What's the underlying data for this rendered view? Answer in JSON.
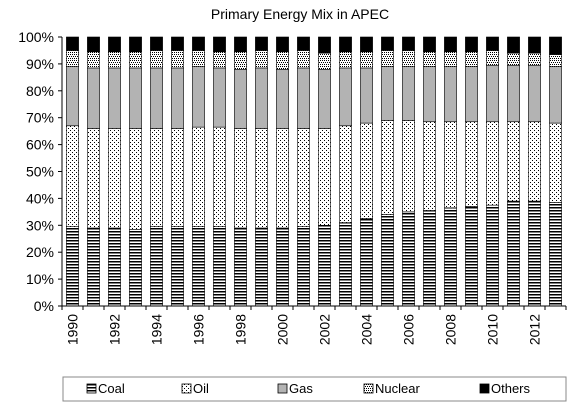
{
  "chart_data": {
    "type": "bar",
    "stacked": true,
    "percent": true,
    "title": "Primary Energy Mix in APEC",
    "xlabel": "",
    "ylabel": "",
    "ylim": [
      0,
      100
    ],
    "y_ticks": [
      "0%",
      "10%",
      "20%",
      "30%",
      "40%",
      "50%",
      "60%",
      "70%",
      "80%",
      "90%",
      "100%"
    ],
    "categories": [
      "1990",
      "1991",
      "1992",
      "1993",
      "1994",
      "1995",
      "1996",
      "1997",
      "1998",
      "1999",
      "2000",
      "2001",
      "2002",
      "2003",
      "2004",
      "2005",
      "2006",
      "2007",
      "2008",
      "2009",
      "2010",
      "2011",
      "2012",
      "2013"
    ],
    "x_tick_labels": [
      "1990",
      "",
      "1992",
      "",
      "1994",
      "",
      "1996",
      "",
      "1998",
      "",
      "2000",
      "",
      "2002",
      "",
      "2004",
      "",
      "2006",
      "",
      "2008",
      "",
      "2010",
      "",
      "2012",
      ""
    ],
    "legend_position": "bottom",
    "grid": false,
    "series": [
      {
        "name": "Coal",
        "pattern": "horizontal-stripes",
        "values": [
          29.5,
          29,
          29,
          28.5,
          29.5,
          29.5,
          29.5,
          29.5,
          29,
          29,
          29,
          29.5,
          30,
          31,
          32.5,
          34,
          35,
          35.5,
          36.5,
          37,
          37.5,
          39,
          39,
          38.5
        ]
      },
      {
        "name": "Oil",
        "pattern": "dots",
        "values": [
          37.5,
          37,
          37,
          37.5,
          36.5,
          36.5,
          37,
          37,
          37,
          37,
          37,
          36.5,
          36,
          36,
          35.5,
          35,
          34,
          33,
          32,
          31.5,
          31,
          29.5,
          29.5,
          29.5
        ]
      },
      {
        "name": "Gas",
        "pattern": "gray",
        "values": [
          22,
          22.5,
          22.5,
          22.5,
          22.5,
          22.5,
          22.5,
          22,
          22,
          22.5,
          22,
          22.5,
          22,
          21.5,
          20.5,
          20,
          20,
          20.5,
          20.5,
          20.5,
          21,
          21,
          21,
          21
        ]
      },
      {
        "name": "Nuclear",
        "pattern": "checker",
        "values": [
          6,
          6,
          6,
          6,
          6.5,
          6.5,
          6,
          6,
          6.5,
          6.5,
          6.5,
          6.5,
          6,
          6,
          6,
          6,
          6,
          5.5,
          5.5,
          5.5,
          5.5,
          4.5,
          4.5,
          4.5
        ]
      },
      {
        "name": "Others",
        "pattern": "black",
        "values": [
          5,
          5.5,
          5.5,
          5.5,
          5,
          5,
          5,
          5.5,
          5.5,
          5,
          5.5,
          5,
          6,
          5.5,
          5.5,
          5,
          5,
          5.5,
          5.5,
          5.5,
          5,
          6,
          6,
          6.5
        ]
      }
    ]
  }
}
